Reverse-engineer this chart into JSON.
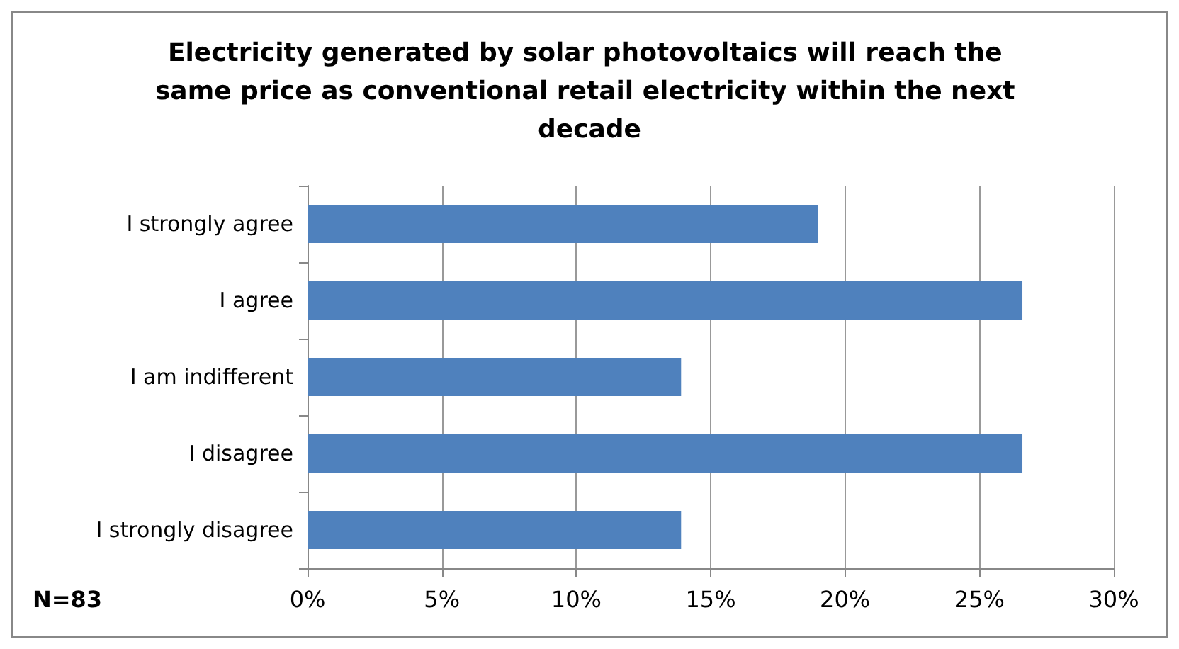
{
  "chart_data": {
    "type": "bar",
    "orientation": "horizontal",
    "title": "Electricity generated by solar photovoltaics will reach the same price as conventional retail electricity within the next decade",
    "categories": [
      "I strongly agree",
      "I agree",
      "I am indifferent",
      "I disagree",
      "I strongly disagree"
    ],
    "values": [
      19.0,
      26.6,
      13.9,
      26.6,
      13.9
    ],
    "color": "#4f81bd",
    "xlim": [
      0,
      30
    ],
    "xticks": [
      {
        "value": 0,
        "label": "0%"
      },
      {
        "value": 5,
        "label": "5%"
      },
      {
        "value": 10,
        "label": "10%"
      },
      {
        "value": 15,
        "label": "15%"
      },
      {
        "value": 20,
        "label": "20%"
      },
      {
        "value": 25,
        "label": "25%"
      },
      {
        "value": 30,
        "label": "30%"
      }
    ],
    "grid": "x",
    "annotations": [
      "N=83"
    ]
  }
}
